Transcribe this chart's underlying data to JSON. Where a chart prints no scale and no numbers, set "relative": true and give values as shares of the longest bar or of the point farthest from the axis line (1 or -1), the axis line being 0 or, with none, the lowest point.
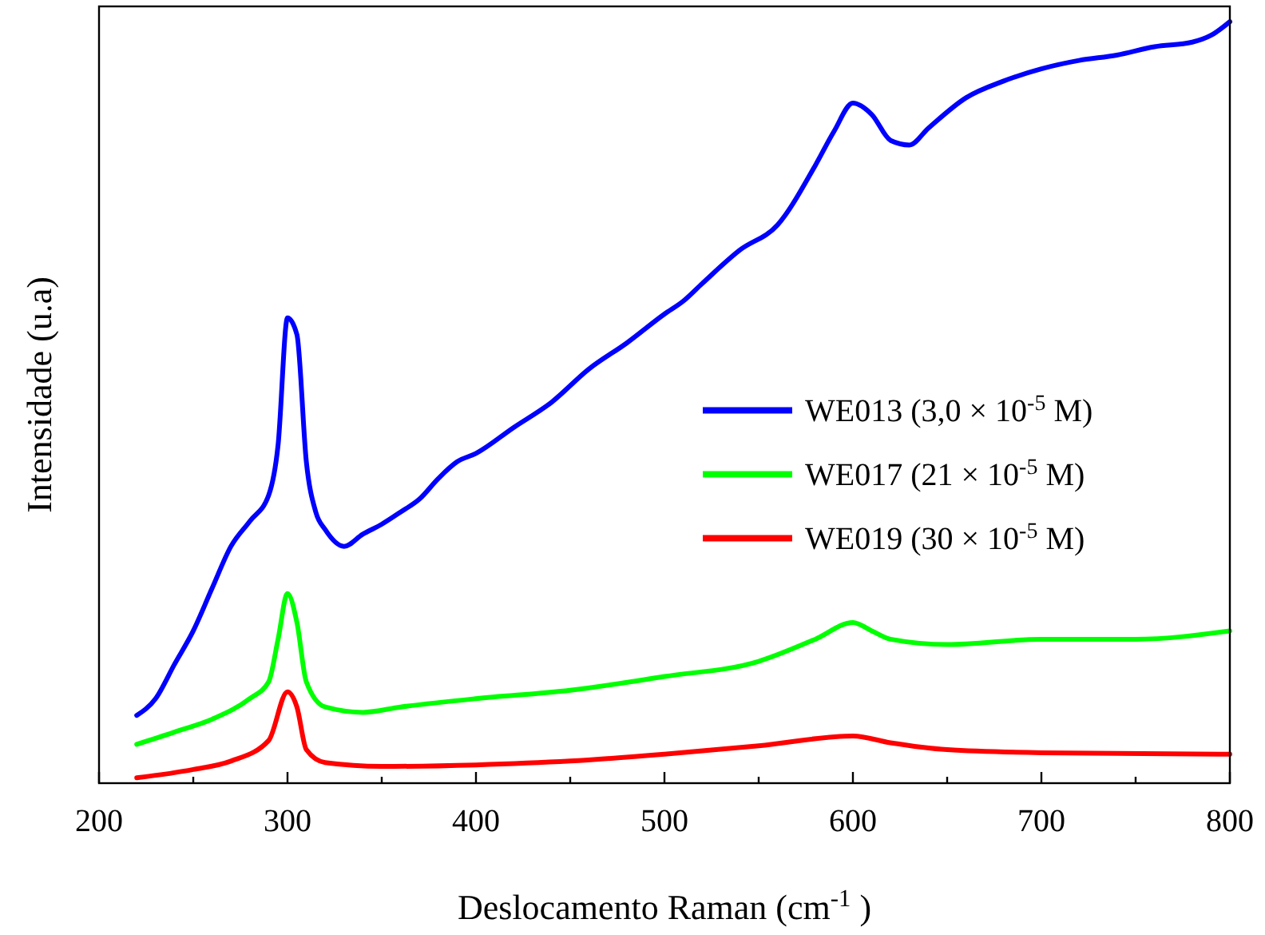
{
  "chart_data": {
    "type": "line",
    "relative": true,
    "xlabel": "Deslocamento Raman (cm$^{-1}$ )",
    "ylabel": "Intensidade (u.a)",
    "xlim": [
      200,
      800
    ],
    "xticks": [
      200,
      {
        "value": 250,
        "label": null
      },
      300,
      {
        "value": 350,
        "label": null
      },
      400,
      {
        "value": 450,
        "label": null
      },
      500,
      {
        "value": 550,
        "label": null
      },
      600,
      {
        "value": 650,
        "label": null
      },
      700,
      {
        "value": 750,
        "label": null
      },
      800
    ],
    "tick_labels": "x",
    "grid": false,
    "legend": "right",
    "line_style": "solid",
    "series": [
      {
        "name": "WE013 (3,0 × 10$^{-5}$ M)",
        "color": "#0000ff",
        "x": [
          220,
          230,
          240,
          250,
          260,
          270,
          280,
          290,
          295,
          300,
          305,
          310,
          315,
          320,
          330,
          340,
          350,
          360,
          370,
          380,
          390,
          400,
          420,
          440,
          460,
          480,
          500,
          510,
          520,
          540,
          560,
          580,
          590,
          600,
          610,
          620,
          630,
          640,
          660,
          680,
          700,
          720,
          740,
          760,
          780,
          790,
          800
        ],
        "values": [
          0.089,
          0.111,
          0.156,
          0.2,
          0.256,
          0.311,
          0.344,
          0.378,
          0.444,
          0.611,
          0.589,
          0.422,
          0.356,
          0.333,
          0.311,
          0.327,
          0.34,
          0.356,
          0.373,
          0.4,
          0.422,
          0.433,
          0.467,
          0.5,
          0.544,
          0.578,
          0.616,
          0.633,
          0.656,
          0.7,
          0.733,
          0.811,
          0.856,
          0.893,
          0.878,
          0.844,
          0.838,
          0.86,
          0.9,
          0.922,
          0.938,
          0.949,
          0.956,
          0.967,
          0.973,
          0.982,
          1
        ]
      },
      {
        "name": "WE017 (21 × 10$^{-5}$ M)",
        "color": "#00ff00",
        "x": [
          220,
          240,
          260,
          280,
          290,
          295,
          300,
          305,
          310,
          320,
          340,
          360,
          400,
          450,
          500,
          550,
          580,
          600,
          610,
          620,
          650,
          700,
          750,
          800
        ],
        "values": [
          0.051,
          0.067,
          0.084,
          0.111,
          0.133,
          0.189,
          0.249,
          0.211,
          0.133,
          0.1,
          0.093,
          0.1,
          0.111,
          0.122,
          0.14,
          0.16,
          0.189,
          0.211,
          0.2,
          0.189,
          0.182,
          0.189,
          0.189,
          0.2
        ]
      },
      {
        "name": "WE019 (30 × 10$^{-5}$ M)",
        "color": "#ff0000",
        "x": [
          220,
          250,
          270,
          290,
          300,
          305,
          310,
          320,
          350,
          400,
          450,
          500,
          550,
          600,
          620,
          650,
          700,
          800
        ],
        "values": [
          0.007,
          0.018,
          0.029,
          0.056,
          0.12,
          0.1,
          0.044,
          0.027,
          0.022,
          0.024,
          0.029,
          0.038,
          0.049,
          0.062,
          0.053,
          0.044,
          0.04,
          0.038
        ]
      }
    ]
  }
}
